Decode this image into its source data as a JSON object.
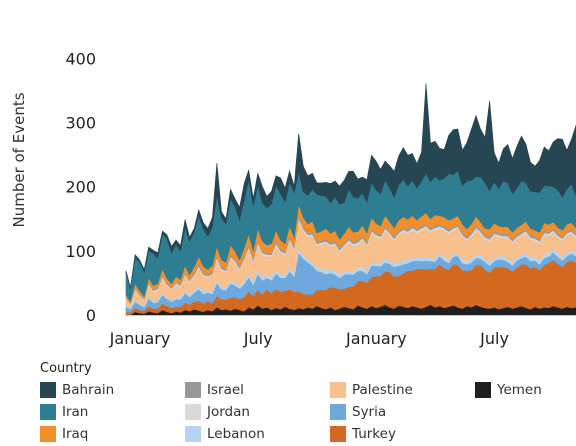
{
  "chart_data": {
    "type": "area",
    "stacked": true,
    "ylabel": "Number of Events",
    "ylim": [
      0,
      460
    ],
    "yticks": [
      0,
      100,
      200,
      300,
      400
    ],
    "xticks": [
      {
        "label": "January",
        "index": 0
      },
      {
        "label": "July",
        "index": 26
      },
      {
        "label": "January",
        "index": 52
      },
      {
        "label": "July",
        "index": 78
      }
    ],
    "x_count": 100,
    "legend_title": "Country",
    "series": [
      {
        "name": "Yemen",
        "color": "#1f1f1f",
        "values": [
          0,
          0,
          5,
          3,
          2,
          6,
          4,
          3,
          8,
          5,
          3,
          6,
          4,
          8,
          6,
          9,
          7,
          5,
          8,
          6,
          12,
          8,
          9,
          7,
          10,
          8,
          6,
          12,
          9,
          15,
          10,
          12,
          8,
          11,
          9,
          13,
          10,
          8,
          11,
          9,
          12,
          10,
          14,
          11,
          9,
          12,
          8,
          10,
          13,
          11,
          9,
          15,
          12,
          10,
          14,
          11,
          13,
          16,
          12,
          10,
          15,
          13,
          11,
          14,
          12,
          10,
          13,
          16,
          12,
          14,
          11,
          13,
          15,
          12,
          10,
          14,
          12,
          16,
          13,
          11,
          10,
          12,
          9,
          11,
          13,
          10,
          12,
          14,
          11,
          9,
          13,
          10,
          12,
          11,
          14,
          12,
          10,
          13,
          11,
          12
        ]
      },
      {
        "name": "Turkey",
        "color": "#d2691e",
        "values": [
          5,
          4,
          6,
          5,
          4,
          8,
          6,
          7,
          10,
          9,
          8,
          7,
          9,
          11,
          10,
          12,
          15,
          13,
          14,
          12,
          18,
          16,
          15,
          20,
          18,
          17,
          22,
          25,
          20,
          24,
          22,
          28,
          26,
          30,
          27,
          25,
          30,
          28,
          26,
          24,
          20,
          22,
          25,
          28,
          30,
          32,
          35,
          30,
          28,
          33,
          36,
          38,
          42,
          40,
          45,
          50,
          48,
          52,
          55,
          50,
          46,
          52,
          58,
          55,
          60,
          62,
          58,
          56,
          60,
          65,
          62,
          58,
          64,
          66,
          60,
          55,
          58,
          62,
          65,
          60,
          56,
          62,
          66,
          64,
          60,
          58,
          62,
          65,
          68,
          64,
          62,
          60,
          66,
          70,
          72,
          68,
          65,
          70,
          74,
          70
        ]
      },
      {
        "name": "Syria",
        "color": "#6fa8dc",
        "values": [
          8,
          5,
          10,
          8,
          6,
          12,
          9,
          10,
          14,
          11,
          10,
          12,
          11,
          15,
          12,
          14,
          18,
          15,
          13,
          15,
          20,
          16,
          15,
          22,
          18,
          16,
          20,
          22,
          18,
          25,
          22,
          18,
          20,
          24,
          22,
          20,
          28,
          24,
          60,
          55,
          50,
          45,
          30,
          28,
          25,
          22,
          20,
          18,
          22,
          20,
          18,
          16,
          15,
          14,
          18,
          16,
          15,
          14,
          13,
          15,
          16,
          14,
          12,
          15,
          13,
          12,
          14,
          12,
          11,
          13,
          12,
          10,
          12,
          14,
          11,
          10,
          12,
          11,
          10,
          12,
          11,
          10,
          12,
          11,
          10,
          9,
          11,
          10,
          12,
          11,
          10,
          9,
          11,
          10,
          12,
          11,
          10,
          9,
          11,
          10
        ]
      },
      {
        "name": "Lebanon",
        "color": "#b4d4f0",
        "values": [
          2,
          2,
          3,
          2,
          2,
          3,
          3,
          3,
          4,
          3,
          3,
          3,
          3,
          4,
          3,
          4,
          5,
          4,
          4,
          4,
          5,
          4,
          4,
          5,
          5,
          4,
          5,
          6,
          5,
          6,
          5,
          5,
          5,
          6,
          5,
          5,
          6,
          5,
          6,
          5,
          5,
          6,
          5,
          5,
          6,
          5,
          6,
          5,
          5,
          6,
          5,
          5,
          6,
          5,
          6,
          5,
          5,
          6,
          5,
          5,
          6,
          5,
          6,
          5,
          5,
          6,
          5,
          5,
          6,
          5,
          5,
          6,
          5,
          5,
          6,
          5,
          5,
          6,
          5,
          5,
          6,
          5,
          5,
          6,
          5,
          5,
          6,
          5,
          5,
          6,
          5,
          5,
          6,
          5,
          5,
          6,
          5,
          5,
          6,
          5
        ]
      },
      {
        "name": "Palestine",
        "color": "#f7c08d",
        "values": [
          10,
          6,
          15,
          12,
          9,
          18,
          14,
          16,
          22,
          18,
          15,
          20,
          17,
          24,
          20,
          22,
          28,
          24,
          20,
          25,
          32,
          26,
          24,
          34,
          30,
          26,
          32,
          38,
          30,
          40,
          35,
          28,
          32,
          38,
          34,
          30,
          42,
          36,
          45,
          38,
          35,
          40,
          34,
          38,
          42,
          36,
          40,
          35,
          38,
          44,
          40,
          36,
          42,
          38,
          45,
          40,
          38,
          44,
          40,
          36,
          42,
          46,
          40,
          44,
          38,
          42,
          46,
          40,
          44,
          38,
          42,
          40,
          36,
          38,
          35,
          32,
          36,
          38,
          34,
          30,
          32,
          35,
          30,
          28,
          32,
          30,
          28,
          30,
          32,
          28,
          26,
          28,
          30,
          28,
          26,
          24,
          26,
          28,
          25,
          24
        ]
      },
      {
        "name": "Jordan",
        "color": "#d9d9d9",
        "values": [
          1,
          1,
          2,
          1,
          1,
          2,
          2,
          2,
          2,
          2,
          2,
          2,
          2,
          2,
          2,
          2,
          3,
          2,
          2,
          2,
          3,
          2,
          2,
          3,
          3,
          2,
          3,
          3,
          3,
          3,
          3,
          3,
          3,
          3,
          3,
          3,
          3,
          3,
          3,
          3,
          3,
          3,
          3,
          3,
          3,
          3,
          3,
          3,
          3,
          3,
          3,
          3,
          3,
          3,
          3,
          3,
          3,
          3,
          3,
          3,
          3,
          3,
          3,
          3,
          3,
          3,
          3,
          3,
          3,
          3,
          3,
          3,
          3,
          3,
          3,
          3,
          3,
          3,
          3,
          3,
          3,
          3,
          3,
          3,
          3,
          3,
          3,
          3,
          3,
          3,
          3,
          3,
          3,
          3,
          3,
          3,
          3,
          3,
          3,
          3
        ]
      },
      {
        "name": "Israel",
        "color": "#999999",
        "values": [
          2,
          1,
          2,
          2,
          1,
          2,
          2,
          2,
          3,
          2,
          2,
          2,
          2,
          3,
          2,
          3,
          3,
          3,
          2,
          3,
          3,
          3,
          3,
          3,
          3,
          3,
          3,
          4,
          3,
          4,
          3,
          3,
          3,
          4,
          3,
          3,
          4,
          3,
          4,
          3,
          3,
          4,
          3,
          3,
          4,
          3,
          4,
          3,
          3,
          4,
          3,
          3,
          4,
          3,
          4,
          3,
          3,
          4,
          3,
          3,
          4,
          3,
          4,
          3,
          3,
          4,
          3,
          3,
          4,
          3,
          3,
          4,
          3,
          3,
          4,
          3,
          3,
          4,
          3,
          3,
          4,
          3,
          3,
          4,
          3,
          3,
          4,
          3,
          3,
          4,
          3,
          3,
          4,
          3,
          3,
          4,
          3,
          3,
          4,
          3
        ]
      },
      {
        "name": "Iraq",
        "color": "#f28e2b",
        "values": [
          4,
          2,
          6,
          5,
          4,
          7,
          6,
          6,
          9,
          7,
          6,
          8,
          7,
          10,
          8,
          9,
          12,
          10,
          8,
          10,
          14,
          11,
          10,
          15,
          12,
          10,
          14,
          16,
          12,
          18,
          15,
          12,
          14,
          16,
          14,
          12,
          16,
          14,
          18,
          15,
          14,
          16,
          14,
          15,
          16,
          14,
          16,
          14,
          15,
          17,
          15,
          14,
          16,
          15,
          17,
          15,
          14,
          16,
          15,
          14,
          16,
          17,
          15,
          16,
          14,
          15,
          17,
          15,
          16,
          14,
          15,
          14,
          13,
          14,
          13,
          12,
          13,
          14,
          12,
          11,
          12,
          13,
          11,
          10,
          12,
          11,
          10,
          11,
          12,
          10,
          10,
          11,
          12,
          11,
          10,
          9,
          10,
          11,
          10,
          9
        ]
      },
      {
        "name": "Iran",
        "color": "#2e7d91",
        "values": [
          35,
          20,
          40,
          45,
          38,
          42,
          50,
          40,
          55,
          62,
          48,
          50,
          45,
          60,
          52,
          55,
          65,
          58,
          52,
          60,
          80,
          65,
          60,
          72,
          70,
          62,
          75,
          85,
          70,
          68,
          60,
          58,
          62,
          70,
          72,
          65,
          68,
          70,
          50,
          40,
          45,
          50,
          60,
          55,
          50,
          48,
          52,
          55,
          48,
          58,
          55,
          52,
          50,
          48,
          55,
          52,
          50,
          55,
          52,
          48,
          55,
          58,
          52,
          55,
          50,
          55,
          62,
          58,
          60,
          55,
          60,
          72,
          68,
          70,
          60,
          75,
          68,
          62,
          70,
          72,
          60,
          65,
          58,
          72,
          68,
          60,
          62,
          68,
          60,
          58,
          60,
          62,
          58,
          60,
          55,
          58,
          52,
          55,
          60,
          50
        ]
      },
      {
        "name": "Bahrain",
        "color": "#264653",
        "values": [
          2,
          2,
          5,
          3,
          4,
          6,
          5,
          8,
          4,
          6,
          10,
          7,
          8,
          12,
          6,
          5,
          8,
          10,
          12,
          15,
          50,
          10,
          8,
          15,
          12,
          20,
          25,
          15,
          12,
          18,
          25,
          18,
          20,
          15,
          25,
          22,
          18,
          10,
          60,
          40,
          30,
          25,
          18,
          20,
          22,
          30,
          25,
          28,
          35,
          28,
          40,
          30,
          25,
          35,
          42,
          45,
          38,
          30,
          35,
          40,
          45,
          50,
          48,
          42,
          38,
          45,
          140,
          60,
          55,
          50,
          45,
          60,
          70,
          65,
          55,
          60,
          80,
          95,
          75,
          70,
          140,
          45,
          40,
          50,
          60,
          55,
          65,
          70,
          60,
          45,
          40,
          50,
          60,
          55,
          70,
          80,
          90,
          60,
          70,
          110
        ]
      }
    ]
  }
}
